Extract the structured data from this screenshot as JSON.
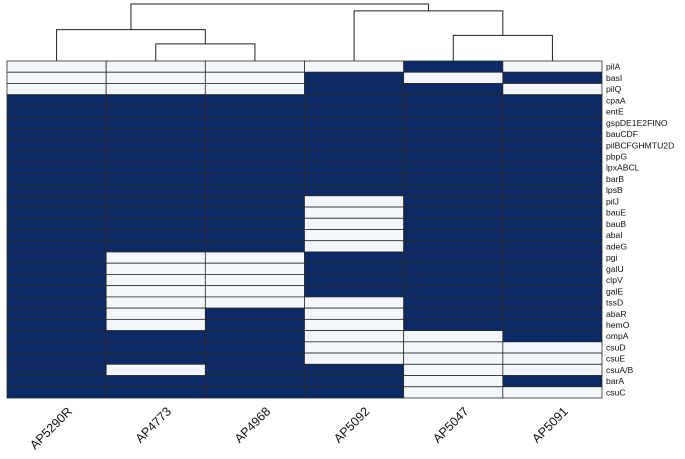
{
  "chart_data": {
    "type": "heatmap",
    "title": "",
    "xlabel": "",
    "ylabel": "",
    "legend": "none",
    "colors": {
      "present": "#0b2a66",
      "absent": "#f3f7fa",
      "grid": "#2b2b2b",
      "dendrogram": "#222222"
    },
    "samples": [
      "AP5290R",
      "AP4773",
      "AP4968",
      "AP5092",
      "AP5047",
      "AP5091"
    ],
    "genes": [
      "pilA",
      "basI",
      "pilQ",
      "cpaA",
      "entE",
      "gspDE1E2FINO",
      "bauCDF",
      "pilBCFGHMTU2D",
      "pbpG",
      "lpxABCL",
      "barB",
      "lpsB",
      "pilJ",
      "bauE",
      "bauB",
      "abaI",
      "adeG",
      "pgi",
      "galU",
      "clpV",
      "galE",
      "tssD",
      "abaR",
      "hemO",
      "ompA",
      "csuD",
      "csuE",
      "csuA/B",
      "barA",
      "csuC"
    ],
    "values": [
      [
        0,
        0,
        0,
        0,
        1,
        0
      ],
      [
        0,
        0,
        0,
        1,
        0,
        1
      ],
      [
        0,
        0,
        0,
        1,
        1,
        0
      ],
      [
        1,
        1,
        1,
        1,
        1,
        1
      ],
      [
        1,
        1,
        1,
        1,
        1,
        1
      ],
      [
        1,
        1,
        1,
        1,
        1,
        1
      ],
      [
        1,
        1,
        1,
        1,
        1,
        1
      ],
      [
        1,
        1,
        1,
        1,
        1,
        1
      ],
      [
        1,
        1,
        1,
        1,
        1,
        1
      ],
      [
        1,
        1,
        1,
        1,
        1,
        1
      ],
      [
        1,
        1,
        1,
        1,
        1,
        1
      ],
      [
        1,
        1,
        1,
        1,
        1,
        1
      ],
      [
        1,
        1,
        1,
        0,
        1,
        1
      ],
      [
        1,
        1,
        1,
        0,
        1,
        1
      ],
      [
        1,
        1,
        1,
        0,
        1,
        1
      ],
      [
        1,
        1,
        1,
        0,
        1,
        1
      ],
      [
        1,
        1,
        1,
        0,
        1,
        1
      ],
      [
        1,
        0,
        0,
        1,
        1,
        1
      ],
      [
        1,
        0,
        0,
        1,
        1,
        1
      ],
      [
        1,
        0,
        0,
        1,
        1,
        1
      ],
      [
        1,
        0,
        0,
        1,
        1,
        1
      ],
      [
        1,
        0,
        0,
        0,
        1,
        1
      ],
      [
        1,
        0,
        1,
        0,
        1,
        1
      ],
      [
        1,
        0,
        1,
        0,
        1,
        1
      ],
      [
        1,
        1,
        1,
        0,
        0,
        1
      ],
      [
        1,
        1,
        1,
        0,
        0,
        0
      ],
      [
        1,
        1,
        1,
        0,
        0,
        0
      ],
      [
        1,
        0,
        1,
        1,
        0,
        0
      ],
      [
        1,
        1,
        1,
        1,
        0,
        1
      ],
      [
        1,
        1,
        1,
        1,
        0,
        0
      ]
    ],
    "dendrogram": {
      "merges": [
        {
          "left": [
            1
          ],
          "right": [
            2
          ],
          "height": 0.3
        },
        {
          "left": [
            0
          ],
          "right": [
            1,
            2
          ],
          "height": 0.55
        },
        {
          "left": [
            4
          ],
          "right": [
            5
          ],
          "height": 0.45
        },
        {
          "left": [
            3
          ],
          "right": [
            4,
            5
          ],
          "height": 0.88
        },
        {
          "left": [
            0,
            1,
            2
          ],
          "right": [
            3,
            4,
            5
          ],
          "height": 1.0
        }
      ]
    }
  }
}
